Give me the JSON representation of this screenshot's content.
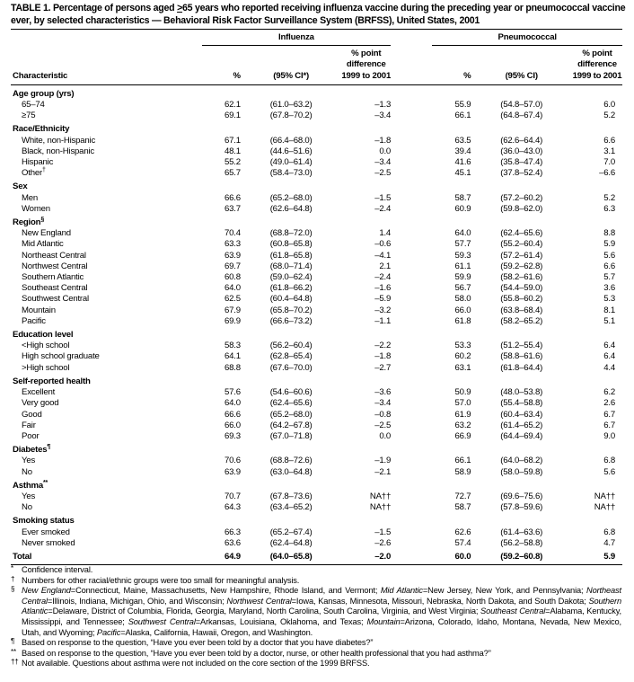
{
  "title": {
    "prefix": "TABLE 1. Percentage of persons aged ",
    "underlined": ">",
    "suffix": "65 years who reported receiving influenza vaccine during the preceding year or pneumococcal vaccine ever, by selected characteristics — Behavioral Risk Factor Surveillance System (BRFSS), United States, 2001"
  },
  "header": {
    "influenza": "Influenza",
    "pneumococcal": "Pneumococcal",
    "characteristic": "Characteristic",
    "pct": "%",
    "ci_influenza": "(95% CI*)",
    "ci_pneumo": "(95% CI)",
    "diff_line1": "% point",
    "diff_line2": "difference",
    "diff_line3": "1999 to 2001"
  },
  "groups": [
    {
      "label": "Age group (yrs)",
      "sup": "",
      "rows": [
        {
          "label": "65–74",
          "sup": "",
          "v": [
            "62.1",
            "(61.0–63.2)",
            "–1.3",
            "55.9",
            "(54.8–57.0)",
            "6.0"
          ]
        },
        {
          "label": "≥75",
          "sup": "",
          "v": [
            "69.1",
            "(67.8–70.2)",
            "–3.4",
            "66.1",
            "(64.8–67.4)",
            "5.2"
          ]
        }
      ]
    },
    {
      "label": "Race/Ethnicity",
      "sup": "",
      "rows": [
        {
          "label": "White, non-Hispanic",
          "sup": "",
          "v": [
            "67.1",
            "(66.4–68.0)",
            "–1.8",
            "63.5",
            "(62.6–64.4)",
            "6.6"
          ]
        },
        {
          "label": "Black, non-Hispanic",
          "sup": "",
          "v": [
            "48.1",
            "(44.6–51.6)",
            "0.0",
            "39.4",
            "(36.0–43.0)",
            "3.1"
          ]
        },
        {
          "label": "Hispanic",
          "sup": "",
          "v": [
            "55.2",
            "(49.0–61.4)",
            "–3.4",
            "41.6",
            "(35.8–47.4)",
            "7.0"
          ]
        },
        {
          "label": "Other",
          "sup": "†",
          "v": [
            "65.7",
            "(58.4–73.0)",
            "–2.5",
            "45.1",
            "(37.8–52.4)",
            "–6.6"
          ]
        }
      ]
    },
    {
      "label": "Sex",
      "sup": "",
      "rows": [
        {
          "label": "Men",
          "sup": "",
          "v": [
            "66.6",
            "(65.2–68.0)",
            "–1.5",
            "58.7",
            "(57.2–60.2)",
            "5.2"
          ]
        },
        {
          "label": "Women",
          "sup": "",
          "v": [
            "63.7",
            "(62.6–64.8)",
            "–2.4",
            "60.9",
            "(59.8–62.0)",
            "6.3"
          ]
        }
      ]
    },
    {
      "label": "Region",
      "sup": "§",
      "rows": [
        {
          "label": "New England",
          "sup": "",
          "v": [
            "70.4",
            "(68.8–72.0)",
            "1.4",
            "64.0",
            "(62.4–65.6)",
            "8.8"
          ]
        },
        {
          "label": "Mid Atlantic",
          "sup": "",
          "v": [
            "63.3",
            "(60.8–65.8)",
            "–0.6",
            "57.7",
            "(55.2–60.4)",
            "5.9"
          ]
        },
        {
          "label": "Northeast Central",
          "sup": "",
          "v": [
            "63.9",
            "(61.8–65.8)",
            "–4.1",
            "59.3",
            "(57.2–61.4)",
            "5.6"
          ]
        },
        {
          "label": "Northwest Central",
          "sup": "",
          "v": [
            "69.7",
            "(68.0–71.4)",
            "2.1",
            "61.1",
            "(59.2–62.8)",
            "6.6"
          ]
        },
        {
          "label": "Southern Atlantic",
          "sup": "",
          "v": [
            "60.8",
            "(59.0–62.4)",
            "–2.4",
            "59.9",
            "(58.2–61.6)",
            "5.7"
          ]
        },
        {
          "label": "Southeast Central",
          "sup": "",
          "v": [
            "64.0",
            "(61.8–66.2)",
            "–1.6",
            "56.7",
            "(54.4–59.0)",
            "3.6"
          ]
        },
        {
          "label": "Southwest Central",
          "sup": "",
          "v": [
            "62.5",
            "(60.4–64.8)",
            "–5.9",
            "58.0",
            "(55.8–60.2)",
            "5.3"
          ]
        },
        {
          "label": "Mountain",
          "sup": "",
          "v": [
            "67.9",
            "(65.8–70.2)",
            "–3.2",
            "66.0",
            "(63.8–68.4)",
            "8.1"
          ]
        },
        {
          "label": "Pacific",
          "sup": "",
          "v": [
            "69.9",
            "(66.6–73.2)",
            "–1.1",
            "61.8",
            "(58.2–65.2)",
            "5.1"
          ]
        }
      ]
    },
    {
      "label": "Education level",
      "sup": "",
      "rows": [
        {
          "label": "<High school",
          "sup": "",
          "v": [
            "58.3",
            "(56.2–60.4)",
            "–2.2",
            "53.3",
            "(51.2–55.4)",
            "6.4"
          ]
        },
        {
          "label": "High school graduate",
          "sup": "",
          "v": [
            "64.1",
            "(62.8–65.4)",
            "–1.8",
            "60.2",
            "(58.8–61.6)",
            "6.4"
          ]
        },
        {
          "label": ">High school",
          "sup": "",
          "v": [
            "68.8",
            "(67.6–70.0)",
            "–2.7",
            "63.1",
            "(61.8–64.4)",
            "4.4"
          ]
        }
      ]
    },
    {
      "label": "Self-reported health",
      "sup": "",
      "rows": [
        {
          "label": "Excellent",
          "sup": "",
          "v": [
            "57.6",
            "(54.6–60.6)",
            "–3.6",
            "50.9",
            "(48.0–53.8)",
            "6.2"
          ]
        },
        {
          "label": "Very good",
          "sup": "",
          "v": [
            "64.0",
            "(62.4–65.6)",
            "–3.4",
            "57.0",
            "(55.4–58.8)",
            "2.6"
          ]
        },
        {
          "label": "Good",
          "sup": "",
          "v": [
            "66.6",
            "(65.2–68.0)",
            "–0.8",
            "61.9",
            "(60.4–63.4)",
            "6.7"
          ]
        },
        {
          "label": "Fair",
          "sup": "",
          "v": [
            "66.0",
            "(64.2–67.8)",
            "–2.5",
            "63.2",
            "(61.4–65.2)",
            "6.7"
          ]
        },
        {
          "label": "Poor",
          "sup": "",
          "v": [
            "69.3",
            "(67.0–71.8)",
            "0.0",
            "66.9",
            "(64.4–69.4)",
            "9.0"
          ]
        }
      ]
    },
    {
      "label": "Diabetes",
      "sup": "¶",
      "rows": [
        {
          "label": "Yes",
          "sup": "",
          "v": [
            "70.6",
            "(68.8–72.6)",
            "–1.9",
            "66.1",
            "(64.0–68.2)",
            "6.8"
          ]
        },
        {
          "label": "No",
          "sup": "",
          "v": [
            "63.9",
            "(63.0–64.8)",
            "–2.1",
            "58.9",
            "(58.0–59.8)",
            "5.6"
          ]
        }
      ]
    },
    {
      "label": "Asthma",
      "sup": "**",
      "rows": [
        {
          "label": "Yes",
          "sup": "",
          "v": [
            "70.7",
            "(67.8–73.6)",
            "NA††",
            "72.7",
            "(69.6–75.6)",
            "NA††"
          ]
        },
        {
          "label": "No",
          "sup": "",
          "v": [
            "64.3",
            "(63.4–65.2)",
            "NA††",
            "58.7",
            "(57.8–59.6)",
            "NA††"
          ]
        }
      ]
    },
    {
      "label": "Smoking status",
      "sup": "",
      "rows": [
        {
          "label": "Ever smoked",
          "sup": "",
          "v": [
            "66.3",
            "(65.2–67.4)",
            "–1.5",
            "62.6",
            "(61.4–63.6)",
            "6.8"
          ]
        },
        {
          "label": "Never smoked",
          "sup": "",
          "v": [
            "63.6",
            "(62.4–64.8)",
            "–2.6",
            "57.4",
            "(56.2–58.8)",
            "4.7"
          ]
        }
      ]
    }
  ],
  "total": {
    "label": "Total",
    "v": [
      "64.9",
      "(64.0–65.8)",
      "–2.0",
      "60.0",
      "(59.2–60.8)",
      "5.9"
    ]
  },
  "footnotes": [
    {
      "mark": "*",
      "segments": [
        {
          "t": "Confidence interval.",
          "i": false
        }
      ]
    },
    {
      "mark": "†",
      "segments": [
        {
          "t": "Numbers for other racial/ethnic groups were too small for meaningful analysis.",
          "i": false
        }
      ]
    },
    {
      "mark": "§",
      "segments": [
        {
          "t": "New England",
          "i": true
        },
        {
          "t": "=Connecticut, Maine, Massachusetts, New Hampshire, Rhode Island, and Vermont; ",
          "i": false
        },
        {
          "t": "Mid Atlantic",
          "i": true
        },
        {
          "t": "=New Jersey, New York, and Pennsylvania; ",
          "i": false
        },
        {
          "t": "Northeast Central",
          "i": true
        },
        {
          "t": "=Illinois, Indiana, Michigan, Ohio, and Wisconsin; ",
          "i": false
        },
        {
          "t": "Northwest Central",
          "i": true
        },
        {
          "t": "=Iowa, Kansas, Minnesota, Missouri, Nebraska, North Dakota, and South Dakota; ",
          "i": false
        },
        {
          "t": "Southern Atlantic",
          "i": true
        },
        {
          "t": "=Delaware, District of Columbia, Florida, Georgia, Maryland, North Carolina, South Carolina, Virginia, and West Virginia; ",
          "i": false
        },
        {
          "t": "Southeast Central",
          "i": true
        },
        {
          "t": "=Alabama, Kentucky, Mississippi, and Tennessee; ",
          "i": false
        },
        {
          "t": "Southwest Central",
          "i": true
        },
        {
          "t": "=Arkansas, Louisiana, Oklahoma, and Texas; ",
          "i": false
        },
        {
          "t": "Mountain",
          "i": true
        },
        {
          "t": "=Arizona, Colorado, Idaho, Montana, Nevada, New Mexico, Utah, and Wyoming; ",
          "i": false
        },
        {
          "t": "Pacific",
          "i": true
        },
        {
          "t": "=Alaska, California, Hawaii, Oregon, and Washington.",
          "i": false
        }
      ]
    },
    {
      "mark": "¶",
      "segments": [
        {
          "t": "Based on response to the question, “Have you ever been told by a doctor that you have diabetes?”",
          "i": false
        }
      ]
    },
    {
      "mark": "**",
      "segments": [
        {
          "t": "Based on response to the question, “Have you ever been told by a doctor, nurse, or other health professional that you had asthma?”",
          "i": false
        }
      ]
    },
    {
      "mark": "††",
      "segments": [
        {
          "t": "Not available. Questions about asthma were not included on the core section of the 1999 BRFSS.",
          "i": false
        }
      ]
    }
  ]
}
